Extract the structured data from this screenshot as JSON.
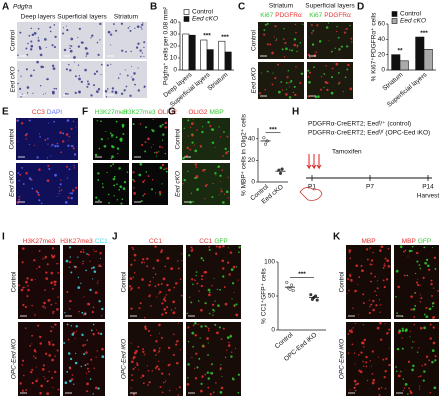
{
  "A": {
    "label": "A",
    "gene": "Pdgfra",
    "image_color": "#d9d9e2",
    "spot_color": "#3a3a8a",
    "columns": [
      {
        "title": "Deep layers"
      },
      {
        "title": "Superficial layers"
      },
      {
        "title": "Striatum"
      }
    ],
    "rows": [
      "Control",
      "Eed cKO"
    ]
  },
  "B": {
    "label": "B",
    "chart": {
      "type": "bar",
      "ylabel": "Pdgfra⁺ cells per 0.08 mm²",
      "categories": [
        "Deep layers",
        "Superficial layers",
        "Striatum"
      ],
      "series": [
        {
          "name": "Control",
          "color": "#ffffff",
          "values": [
            30,
            25,
            24
          ]
        },
        {
          "name": "Eed cKO",
          "color": "#111111",
          "values": [
            29,
            17,
            15
          ]
        }
      ],
      "significance": [
        null,
        "***",
        "***"
      ],
      "ylim": [
        0,
        40
      ],
      "yticks": [
        0,
        10,
        20,
        30,
        40
      ]
    }
  },
  "C": {
    "label": "C",
    "image_color": "#1c1a0e",
    "columns": [
      {
        "title": "Striatum",
        "channels": [
          {
            "name": "Ki67",
            "color": "#33cc33"
          },
          {
            "name": "PDGFRα",
            "color": "#e83030"
          }
        ]
      },
      {
        "title": "Superficial layers",
        "channels": [
          {
            "name": "Ki67",
            "color": "#33cc33"
          },
          {
            "name": "PDGFRα",
            "color": "#e83030"
          }
        ]
      }
    ],
    "rows": [
      "Control",
      "Eed cKO"
    ]
  },
  "D": {
    "label": "D",
    "chart": {
      "type": "bar",
      "ylabel": "% Ki67⁺PDGFRα⁺ cells",
      "categories": [
        "Striatum",
        "Superficial layers"
      ],
      "series": [
        {
          "name": "Control",
          "color": "#111111",
          "values": [
            20,
            43
          ]
        },
        {
          "name": "Eed cKO",
          "color": "#aaaaaa",
          "values": [
            12,
            27
          ]
        }
      ],
      "significance": [
        "**",
        "***"
      ],
      "ylim": [
        0,
        60
      ],
      "yticks": [
        0,
        20,
        40,
        60
      ]
    }
  },
  "E": {
    "label": "E",
    "image_color": "#10105a",
    "columns": [
      {
        "channels": [
          {
            "name": "CC3",
            "color": "#e83030"
          },
          {
            "name": "DAPI",
            "color": "#5a6cff"
          }
        ]
      }
    ],
    "rows": [
      "Control",
      "Eed cKO"
    ]
  },
  "F": {
    "label": "F",
    "image_color": "#080808",
    "columns": [
      {
        "channels": [
          {
            "name": "H3K27me3",
            "color": "#33cc33"
          }
        ]
      },
      {
        "channels": [
          {
            "name": "H3K27me3",
            "color": "#33cc33"
          },
          {
            "name": "OLIG2",
            "color": "#e83030"
          }
        ]
      }
    ],
    "rows": []
  },
  "G": {
    "label": "G",
    "image_color": "#1a2a10",
    "columns": [
      {
        "channels": [
          {
            "name": "OLIG2",
            "color": "#e83030"
          },
          {
            "name": "MBP",
            "color": "#33cc33"
          }
        ]
      }
    ],
    "rows": [
      "Control",
      "Eed cKO"
    ],
    "chart": {
      "type": "dot",
      "ylabel": "% MBP⁺ cells in Olig2⁺ cells",
      "categories": [
        "Control",
        "Eed cKO"
      ],
      "values": [
        38,
        10
      ],
      "points": [
        [
          41,
          35,
          38
        ],
        [
          11,
          8,
          12
        ]
      ],
      "significance": "***",
      "ylim": [
        0,
        50
      ],
      "yticks": [
        0,
        20,
        40
      ]
    }
  },
  "H": {
    "label": "H",
    "genotypes": [
      "PDGFRα-CreERT2; Eedᶠ/⁺ (control)",
      "PDGFRα-CreERT2; Eedᶠ/ᶠ (OPC-Eed iKO)"
    ],
    "treatment": "Tamoxifen",
    "timepoints": [
      "P1",
      "P7",
      "P14"
    ],
    "endpoint": "Harvest"
  },
  "I": {
    "label": "I",
    "image_color": "#1a0808",
    "columns": [
      {
        "channels": [
          {
            "name": "H3K27me3",
            "color": "#e83030"
          }
        ]
      },
      {
        "channels": [
          {
            "name": "H3K27me3",
            "color": "#e83030"
          },
          {
            "name": "CC1",
            "color": "#40d8e8"
          }
        ]
      }
    ],
    "rows": [
      "Control",
      "OPC-Eed iKO"
    ]
  },
  "J": {
    "label": "J",
    "image_color": "#180c08",
    "columns": [
      {
        "channels": [
          {
            "name": "CC1",
            "color": "#e83030"
          }
        ]
      },
      {
        "channels": [
          {
            "name": "CC1",
            "color": "#e83030"
          },
          {
            "name": "GFP",
            "color": "#33cc33"
          }
        ]
      }
    ],
    "rows": [
      "Control",
      "OPC-Eed iKO"
    ],
    "chart": {
      "type": "dot",
      "ylabel": "% CC1⁺GFP⁺ cells",
      "categories": [
        "Control",
        "OPC-Eed iKO"
      ],
      "values": [
        63,
        48
      ],
      "points": [
        [
          70,
          62,
          60,
          66,
          58
        ],
        [
          52,
          45,
          48,
          50,
          44
        ]
      ],
      "significance": "***",
      "ylim": [
        0,
        100
      ],
      "yticks": [
        0,
        50,
        100
      ]
    }
  },
  "K": {
    "label": "K",
    "image_color": "#160a06",
    "columns": [
      {
        "channels": [
          {
            "name": "MBP",
            "color": "#e83030"
          }
        ]
      },
      {
        "channels": [
          {
            "name": "MBP",
            "color": "#e83030"
          },
          {
            "name": "GFP",
            "color": "#33cc33"
          }
        ]
      }
    ],
    "rows": [
      "Control",
      "OPC-Eed iKO"
    ]
  }
}
